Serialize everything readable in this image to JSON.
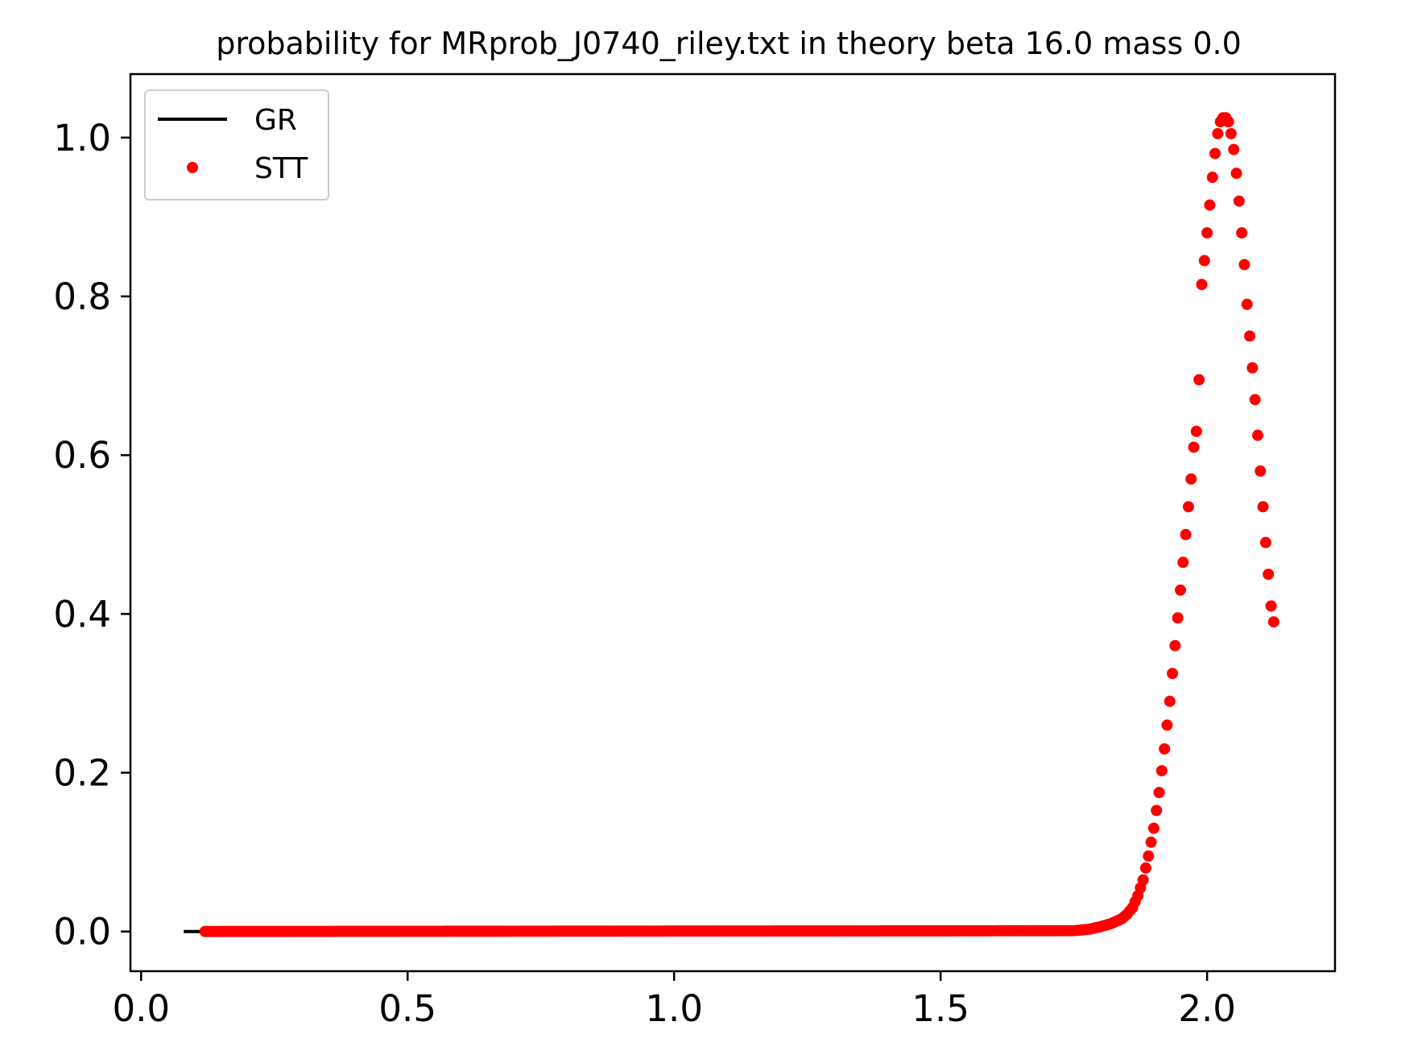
{
  "chart_data": {
    "type": "scatter",
    "title": "probability for MRprob_J0740_riley.txt in theory beta 16.0 mass 0.0",
    "xlabel": "",
    "ylabel": "",
    "xlim": [
      -0.02,
      2.24
    ],
    "ylim": [
      -0.05,
      1.08
    ],
    "x_ticks": [
      0.0,
      0.5,
      1.0,
      1.5,
      2.0
    ],
    "x_tick_labels": [
      "0.0",
      "0.5",
      "1.0",
      "1.5",
      "2.0"
    ],
    "y_ticks": [
      0.0,
      0.2,
      0.4,
      0.6,
      0.8,
      1.0
    ],
    "y_tick_labels": [
      "0.0",
      "0.2",
      "0.4",
      "0.6",
      "0.8",
      "1.0"
    ],
    "grid": false,
    "legend_position": "top-left",
    "series": [
      {
        "name": "GR",
        "style": "line",
        "color": "#000000",
        "x": [
          0.08,
          0.12
        ],
        "y": [
          0.0,
          0.0
        ]
      },
      {
        "name": "STT",
        "style": "points",
        "color": "#ff0000",
        "x": [
          0.12,
          1.75,
          1.78,
          1.8,
          1.82,
          1.84,
          1.85,
          1.86,
          1.87,
          1.88,
          1.89,
          1.9,
          1.91,
          1.92,
          1.93,
          1.94,
          1.95,
          1.96,
          1.97,
          1.975,
          1.98,
          1.985,
          1.99,
          1.995,
          2.0,
          2.005,
          2.01,
          2.015,
          2.02,
          2.025,
          2.03,
          2.035,
          2.04,
          2.045,
          2.05,
          2.055,
          2.06,
          2.065,
          2.07,
          2.075,
          2.08,
          2.085,
          2.09,
          2.095,
          2.1,
          2.105,
          2.11,
          2.115,
          2.12,
          2.125
        ],
        "y": [
          0.0,
          0.001,
          0.003,
          0.006,
          0.01,
          0.016,
          0.022,
          0.03,
          0.045,
          0.065,
          0.095,
          0.13,
          0.175,
          0.23,
          0.29,
          0.36,
          0.43,
          0.5,
          0.57,
          0.61,
          0.63,
          0.695,
          0.815,
          0.845,
          0.88,
          0.915,
          0.95,
          0.98,
          1.005,
          1.02,
          1.025,
          1.025,
          1.02,
          1.005,
          0.985,
          0.955,
          0.92,
          0.88,
          0.84,
          0.79,
          0.75,
          0.71,
          0.67,
          0.625,
          0.58,
          0.535,
          0.49,
          0.45,
          0.41,
          0.39
        ]
      }
    ]
  }
}
